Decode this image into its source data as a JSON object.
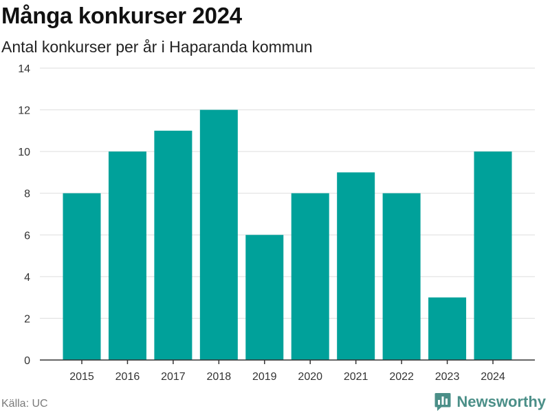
{
  "chart_data": {
    "type": "bar",
    "title": "Många konkurser 2024",
    "subtitle": "Antal konkurser per år i Haparanda kommun",
    "categories": [
      "2015",
      "2016",
      "2017",
      "2018",
      "2019",
      "2020",
      "2021",
      "2022",
      "2023",
      "2024"
    ],
    "values": [
      8,
      10,
      11,
      12,
      6,
      8,
      9,
      8,
      3,
      10
    ],
    "ylim": [
      0,
      14
    ],
    "yticks": [
      "0",
      "2",
      "4",
      "6",
      "8",
      "10",
      "12",
      "14"
    ],
    "grid": true,
    "bar_color": "#00a19a",
    "grid_color": "#dddddd",
    "axis_color": "#333333"
  },
  "footer": {
    "source": "Källa: UC",
    "brand": "Newsworthy",
    "brand_icon": "bar-chart-icon",
    "brand_color": "#4b8f88"
  }
}
